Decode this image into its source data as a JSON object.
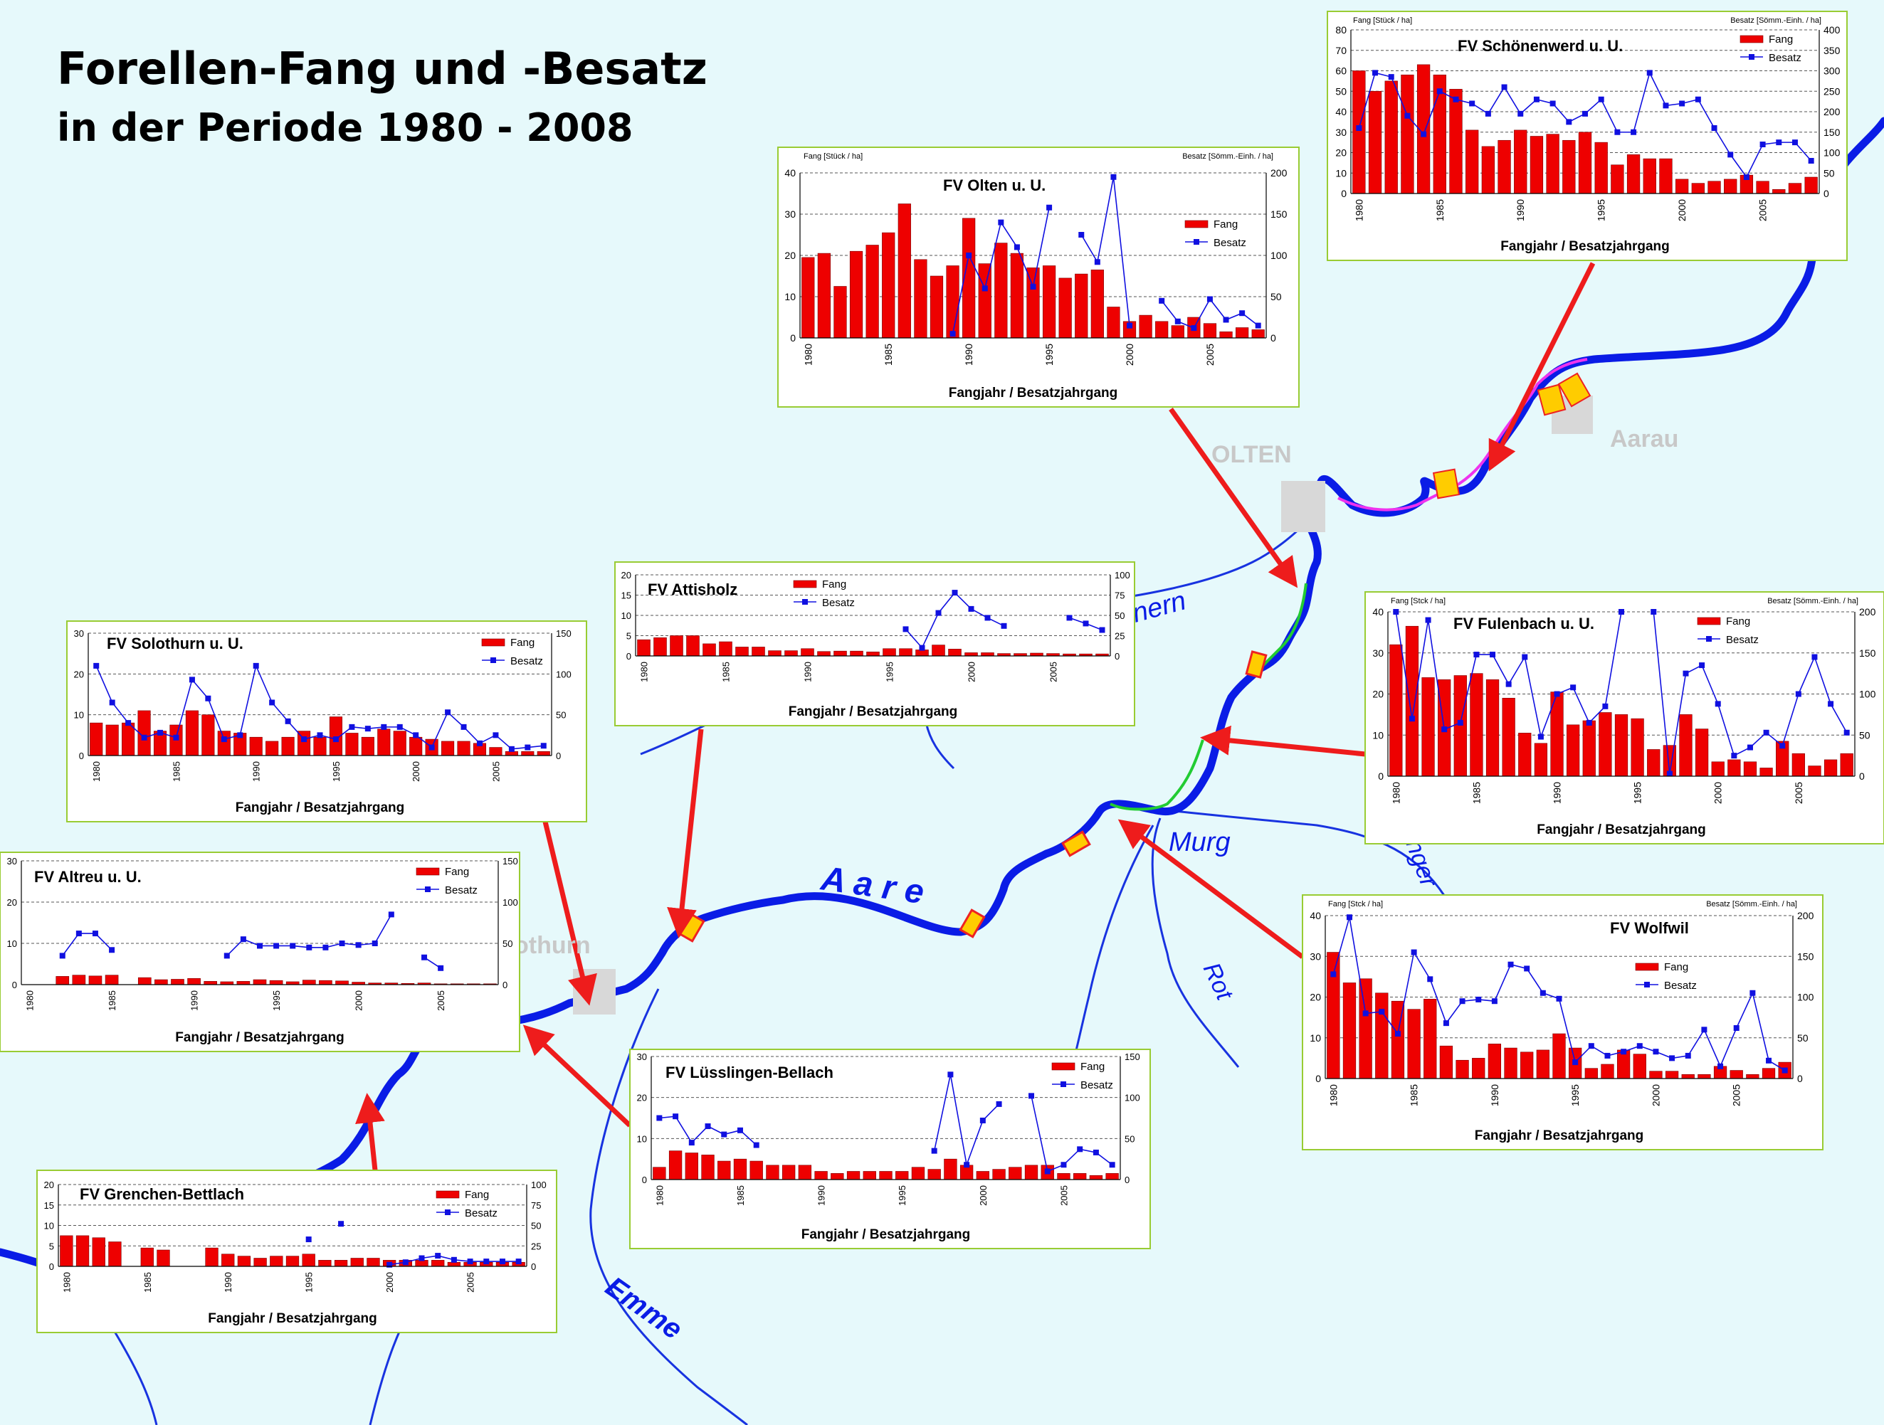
{
  "title": {
    "line1": "Forellen-Fang und -Besatz",
    "line2": "in der Periode 1980 - 2008"
  },
  "map_labels": {
    "aare": "A a r e",
    "olten": "OLTEN",
    "aarau": "Aarau",
    "solothurn": "othurn",
    "murg": "Murg",
    "rot": "Rot",
    "emme": "Emme",
    "dunnern": "nern",
    "langeten": "nger"
  },
  "colors": {
    "fang": "#ee0000",
    "besatz": "#1010e0",
    "river": "#0a1ce6",
    "arrow": "#ee1c1c",
    "panel_border": "#99cc33",
    "green_reach": "#22cc33",
    "magenta_reach": "#ee33ee"
  },
  "chart_data": [
    {
      "id": "schoenenwerd",
      "type": "bar+line",
      "title": "FV Schönenwerd u. U.",
      "ylabel_left": "Fang [Stück / ha]",
      "ylabel_right": "Besatz [Sömm.-Einh. / ha]",
      "xlabel": "Fangjahr / Besatzjahrgang",
      "legend": [
        "Fang",
        "Besatz"
      ],
      "x": [
        1980,
        1981,
        1982,
        1983,
        1984,
        1985,
        1986,
        1987,
        1988,
        1989,
        1990,
        1991,
        1992,
        1993,
        1994,
        1995,
        1996,
        1997,
        1998,
        1999,
        2000,
        2001,
        2002,
        2003,
        2004,
        2005,
        2006,
        2007,
        2008
      ],
      "fang": [
        60,
        50,
        55,
        58,
        63,
        58,
        51,
        31,
        23,
        26,
        31,
        28,
        29,
        26,
        30,
        25,
        14,
        19,
        17,
        17,
        7,
        5,
        6,
        7,
        9,
        6,
        2,
        5,
        8
      ],
      "besatz": [
        160,
        295,
        285,
        190,
        145,
        250,
        230,
        220,
        195,
        260,
        195,
        230,
        220,
        175,
        195,
        230,
        150,
        150,
        295,
        215,
        220,
        230,
        160,
        95,
        40,
        120,
        125,
        125,
        80
      ],
      "ylim_left": [
        0,
        80
      ],
      "ylim_right": [
        0,
        400
      ]
    },
    {
      "id": "olten",
      "type": "bar+line",
      "title": "FV Olten u. U.",
      "ylabel_left": "Fang [Stück / ha]",
      "ylabel_right": "Besatz [Sömm.-Einh. / ha]",
      "xlabel": "Fangjahr / Besatzjahrgang",
      "legend": [
        "Fang",
        "Besatz"
      ],
      "x": [
        1980,
        1981,
        1982,
        1983,
        1984,
        1985,
        1986,
        1987,
        1988,
        1989,
        1990,
        1991,
        1992,
        1993,
        1994,
        1995,
        1996,
        1997,
        1998,
        1999,
        2000,
        2001,
        2002,
        2003,
        2004,
        2005,
        2006,
        2007,
        2008
      ],
      "fang": [
        19.5,
        20.5,
        12.5,
        21,
        22.5,
        25.5,
        32.5,
        19,
        15,
        17.5,
        29,
        18,
        23,
        20.5,
        17,
        17.5,
        14.5,
        15.5,
        16.5,
        7.5,
        4,
        5.5,
        4,
        3,
        5,
        3.5,
        1.5,
        2.5,
        2
      ],
      "besatz": [
        null,
        null,
        null,
        null,
        null,
        null,
        null,
        null,
        null,
        5,
        100,
        60,
        140,
        110,
        62,
        158,
        null,
        125,
        92,
        195,
        15,
        null,
        45,
        20,
        12,
        47,
        22,
        30,
        15
      ],
      "ylim_left": [
        0,
        40
      ],
      "ylim_right": [
        0,
        200
      ]
    },
    {
      "id": "attisholz",
      "type": "bar+line",
      "title": "FV Attisholz",
      "ylabel_left": "",
      "ylabel_right": "",
      "xlabel": "Fangjahr / Besatzjahrgang",
      "legend": [
        "Fang",
        "Besatz"
      ],
      "x": [
        1980,
        1981,
        1982,
        1983,
        1984,
        1985,
        1986,
        1987,
        1988,
        1989,
        1990,
        1991,
        1992,
        1993,
        1994,
        1995,
        1996,
        1997,
        1998,
        1999,
        2000,
        2001,
        2002,
        2003,
        2004,
        2005,
        2006,
        2007,
        2008
      ],
      "fang": [
        4,
        4.5,
        5,
        5,
        3,
        3.5,
        2.2,
        2.2,
        1.3,
        1.3,
        1.8,
        1.1,
        1.2,
        1.2,
        1,
        1.8,
        1.8,
        1.5,
        2.7,
        1.7,
        0.8,
        0.8,
        0.6,
        0.6,
        0.7,
        0.6,
        0.5,
        0.5,
        0.5
      ],
      "besatz": [
        null,
        null,
        null,
        null,
        null,
        null,
        null,
        null,
        null,
        null,
        null,
        null,
        null,
        null,
        null,
        null,
        33,
        10,
        53,
        78,
        58,
        47,
        37,
        null,
        null,
        null,
        47,
        40,
        32
      ],
      "ylim_left": [
        0,
        20
      ],
      "ylim_right": [
        0,
        100
      ]
    },
    {
      "id": "solothurn",
      "type": "bar+line",
      "title": "FV Solothurn u. U.",
      "ylabel_left": "",
      "ylabel_right": "",
      "xlabel": "Fangjahr / Besatzjahrgang",
      "legend": [
        "Fang",
        "Besatz"
      ],
      "x": [
        1980,
        1981,
        1982,
        1983,
        1984,
        1985,
        1986,
        1987,
        1988,
        1989,
        1990,
        1991,
        1992,
        1993,
        1994,
        1995,
        1996,
        1997,
        1998,
        1999,
        2000,
        2001,
        2002,
        2003,
        2004,
        2005,
        2006,
        2007,
        2008
      ],
      "fang": [
        8,
        7.5,
        8,
        11,
        6,
        7.5,
        11,
        10,
        6,
        5.5,
        4.5,
        3.5,
        4.5,
        6,
        4.5,
        9.5,
        5.5,
        4.5,
        6.5,
        6,
        4.5,
        4,
        3.5,
        3.5,
        3,
        2,
        1,
        1,
        1
      ],
      "besatz": [
        110,
        65,
        40,
        22,
        28,
        22,
        93,
        70,
        20,
        25,
        110,
        65,
        42,
        20,
        25,
        20,
        35,
        33,
        35,
        35,
        25,
        10,
        53,
        35,
        15,
        25,
        8,
        10,
        12
      ],
      "ylim_left": [
        0,
        30
      ],
      "ylim_right": [
        0,
        150
      ]
    },
    {
      "id": "fulenbach",
      "type": "bar+line",
      "title": "FV Fulenbach u. U.",
      "ylabel_left": "Fang [Stck / ha]",
      "ylabel_right": "Besatz [Sömm.-Einh. / ha]",
      "xlabel": "Fangjahr / Besatzjahrgang",
      "legend": [
        "Fang",
        "Besatz"
      ],
      "x": [
        1980,
        1981,
        1982,
        1983,
        1984,
        1985,
        1986,
        1987,
        1988,
        1989,
        1990,
        1991,
        1992,
        1993,
        1994,
        1995,
        1996,
        1997,
        1998,
        1999,
        2000,
        2001,
        2002,
        2003,
        2004,
        2005,
        2006,
        2007,
        2008
      ],
      "fang": [
        32,
        36.5,
        24,
        23.5,
        24.5,
        25,
        23.5,
        19,
        10.5,
        8,
        20.5,
        12.5,
        13.5,
        15.5,
        15,
        14,
        6.5,
        7.5,
        15,
        11.5,
        3.5,
        4,
        3.5,
        2,
        8.5,
        5.5,
        2.5,
        4,
        5.5
      ],
      "besatz": [
        220,
        70,
        190,
        57,
        65,
        148,
        148,
        112,
        145,
        48,
        100,
        108,
        65,
        85,
        250,
        null,
        250,
        3,
        125,
        135,
        88,
        25,
        35,
        53,
        37,
        100,
        145,
        88,
        53
      ],
      "ylim_left": [
        0,
        40
      ],
      "ylim_right": [
        0,
        200
      ]
    },
    {
      "id": "altreu",
      "type": "bar+line",
      "title": "FV Altreu u. U.",
      "ylabel_left": "",
      "ylabel_right": "",
      "xlabel": "Fangjahr / Besatzjahrgang",
      "legend": [
        "Fang",
        "Besatz"
      ],
      "x": [
        1980,
        1981,
        1982,
        1983,
        1984,
        1985,
        1986,
        1987,
        1988,
        1989,
        1990,
        1991,
        1992,
        1993,
        1994,
        1995,
        1996,
        1997,
        1998,
        1999,
        2000,
        2001,
        2002,
        2003,
        2004,
        2005,
        2006,
        2007,
        2008
      ],
      "fang": [
        null,
        null,
        2,
        2.3,
        2.1,
        2.3,
        null,
        1.7,
        1.2,
        1.3,
        1.5,
        0.8,
        0.7,
        0.8,
        1.2,
        1,
        0.7,
        1.1,
        1,
        0.9,
        0.6,
        0.4,
        0.4,
        0.3,
        0.4,
        0.2,
        0.2,
        0.2,
        0.2
      ],
      "besatz": [
        null,
        null,
        35,
        62,
        62,
        42,
        null,
        null,
        null,
        null,
        null,
        null,
        35,
        55,
        47,
        47,
        47,
        45,
        45,
        50,
        48,
        50,
        85,
        null,
        33,
        20,
        null,
        null,
        null
      ],
      "ylim_left": [
        0,
        30
      ],
      "ylim_right": [
        0,
        150
      ]
    },
    {
      "id": "luesslingen",
      "type": "bar+line",
      "title": "FV Lüsslingen-Bellach",
      "ylabel_left": "",
      "ylabel_right": "",
      "xlabel": "Fangjahr / Besatzjahrgang",
      "legend": [
        "Fang",
        "Besatz"
      ],
      "x": [
        1980,
        1981,
        1982,
        1983,
        1984,
        1985,
        1986,
        1987,
        1988,
        1989,
        1990,
        1991,
        1992,
        1993,
        1994,
        1995,
        1996,
        1997,
        1998,
        1999,
        2000,
        2001,
        2002,
        2003,
        2004,
        2005,
        2006,
        2007,
        2008
      ],
      "fang": [
        3,
        7,
        6.5,
        6,
        4.5,
        5,
        4.5,
        3.5,
        3.5,
        3.5,
        2,
        1.5,
        2,
        2,
        2,
        2,
        3,
        2.5,
        5,
        3.5,
        2,
        2.5,
        3,
        3.5,
        3.5,
        1.5,
        1.5,
        1,
        1.5
      ],
      "besatz": [
        75,
        77,
        45,
        65,
        55,
        60,
        42,
        null,
        null,
        null,
        null,
        null,
        null,
        null,
        null,
        null,
        null,
        35,
        128,
        18,
        72,
        92,
        null,
        102,
        10,
        18,
        37,
        33,
        18
      ],
      "ylim_left": [
        0,
        30
      ],
      "ylim_right": [
        0,
        150
      ]
    },
    {
      "id": "wolfwil",
      "type": "bar+line",
      "title": "FV Wolfwil",
      "ylabel_left": "Fang [Stck / ha]",
      "ylabel_right": "Besatz [Sömm.-Einh. / ha]",
      "xlabel": "Fangjahr / Besatzjahrgang",
      "legend": [
        "Fang",
        "Besatz"
      ],
      "x": [
        1980,
        1981,
        1982,
        1983,
        1984,
        1985,
        1986,
        1987,
        1988,
        1989,
        1990,
        1991,
        1992,
        1993,
        1994,
        1995,
        1996,
        1997,
        1998,
        1999,
        2000,
        2001,
        2002,
        2003,
        2004,
        2005,
        2006,
        2007,
        2008
      ],
      "fang": [
        31,
        23.5,
        24.5,
        21,
        19,
        17,
        19.5,
        8,
        4.5,
        5,
        8.5,
        7.5,
        6.5,
        7,
        11,
        7.5,
        2.5,
        3.5,
        7,
        6,
        1.8,
        1.8,
        1,
        1,
        3,
        2,
        1,
        2.5,
        4
      ],
      "besatz": [
        128,
        198,
        80,
        82,
        55,
        155,
        122,
        68,
        95,
        97,
        95,
        140,
        135,
        105,
        98,
        20,
        40,
        28,
        33,
        40,
        33,
        25,
        28,
        60,
        15,
        62,
        105,
        22,
        10
      ],
      "ylim_left": [
        0,
        40
      ],
      "ylim_right": [
        0,
        200
      ]
    },
    {
      "id": "grenchen",
      "type": "bar+line",
      "title": "FV Grenchen-Bettlach",
      "ylabel_left": "",
      "ylabel_right": "",
      "xlabel": "Fangjahr / Besatzjahrgang",
      "legend": [
        "Fang",
        "Besatz"
      ],
      "x": [
        1980,
        1981,
        1982,
        1983,
        1984,
        1985,
        1986,
        1987,
        1988,
        1989,
        1990,
        1991,
        1992,
        1993,
        1994,
        1995,
        1996,
        1997,
        1998,
        1999,
        2000,
        2001,
        2002,
        2003,
        2004,
        2005,
        2006,
        2007,
        2008
      ],
      "fang": [
        7.5,
        7.5,
        7,
        6,
        null,
        4.5,
        4,
        null,
        null,
        4.5,
        3,
        2.5,
        2,
        2.5,
        2.5,
        3,
        1.5,
        1.5,
        2,
        2,
        1.5,
        1.5,
        1.5,
        1.5,
        1,
        1,
        1,
        1,
        1
      ],
      "besatz": [
        null,
        null,
        null,
        null,
        null,
        null,
        null,
        null,
        null,
        null,
        null,
        null,
        null,
        null,
        null,
        33,
        null,
        52,
        null,
        null,
        2,
        5,
        10,
        13,
        8,
        6,
        6,
        6,
        6
      ],
      "ylim_left": [
        0,
        20
      ],
      "ylim_right": [
        0,
        100
      ]
    }
  ]
}
